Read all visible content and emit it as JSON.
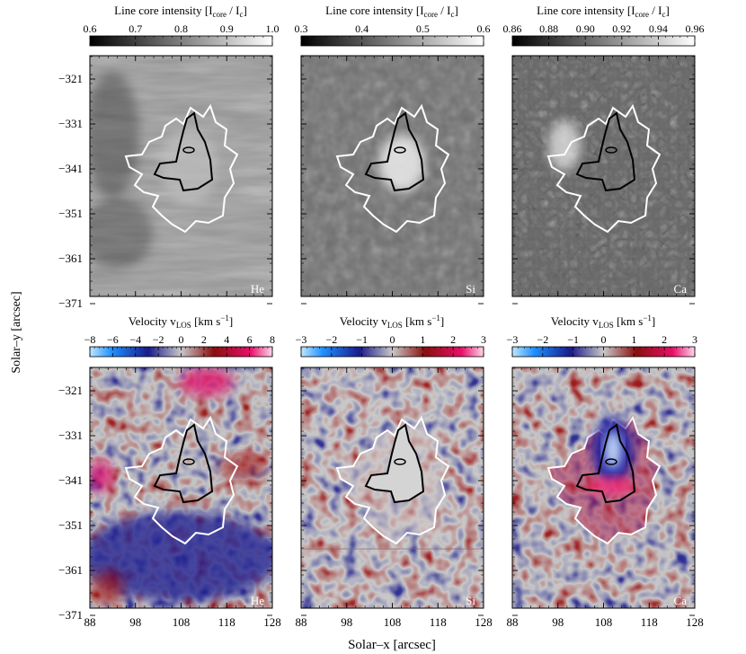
{
  "figure": {
    "ylabel": "Solar–y  [arcsec]",
    "xlabel": "Solar–x  [arcsec]",
    "y_ticks": [
      "−321",
      "−331",
      "−341",
      "−351",
      "−361",
      "−371"
    ],
    "x_ticks": [
      "88",
      "98",
      "108",
      "118",
      "128"
    ],
    "contour_colors": {
      "outer": "#ffffff",
      "inner": "#000000"
    }
  },
  "colorbars": {
    "he_intensity": {
      "title": "Line core intensity [I",
      "sub_core": "core",
      "mid": " / I",
      "sub_c": "c",
      "end": "]",
      "ticks": [
        "0.6",
        "0.7",
        "0.8",
        "0.9",
        "1.0"
      ],
      "range": [
        0.6,
        1.0
      ]
    },
    "si_intensity": {
      "title": "Line core intensity [I",
      "sub_core": "core",
      "mid": " / I",
      "sub_c": "c",
      "end": "]",
      "ticks": [
        "0.3",
        "0.4",
        "0.5",
        "0.6"
      ],
      "range": [
        0.3,
        0.6
      ]
    },
    "ca_intensity": {
      "title": "Line core intensity [I",
      "sub_core": "core",
      "mid": " / I",
      "sub_c": "c",
      "end": "]",
      "ticks": [
        "0.86",
        "0.88",
        "0.90",
        "0.92",
        "0.94",
        "0.96"
      ],
      "range": [
        0.86,
        0.96
      ]
    },
    "he_velocity": {
      "title": "Velocity  v",
      "sub": "LOS",
      "units": "  [km s",
      "sup": "−1",
      "close": "]",
      "ticks": [
        "−8",
        "−6",
        "−4",
        "−2",
        "0",
        "2",
        "4",
        "6",
        "8"
      ],
      "range": [
        -8,
        8
      ]
    },
    "si_velocity": {
      "title": "Velocity  v",
      "sub": "LOS",
      "units": "  [km s",
      "sup": "−1",
      "close": "]",
      "ticks": [
        "−3",
        "−2",
        "−1",
        "0",
        "1",
        "2",
        "3"
      ],
      "range": [
        -3,
        3
      ]
    },
    "ca_velocity": {
      "title": "Velocity  v",
      "sub": "LOS",
      "units": "  [km s",
      "sup": "−1",
      "close": "]",
      "ticks": [
        "−3",
        "−2",
        "−1",
        "0",
        "1",
        "2",
        "3"
      ],
      "range": [
        -3,
        3
      ]
    }
  },
  "panels": {
    "top_he": {
      "label": "He"
    },
    "top_si": {
      "label": "Si"
    },
    "top_ca": {
      "label": "Ca"
    },
    "bottom_he": {
      "label": "He"
    },
    "bottom_si": {
      "label": "Si"
    },
    "bottom_ca": {
      "label": "Ca"
    }
  }
}
